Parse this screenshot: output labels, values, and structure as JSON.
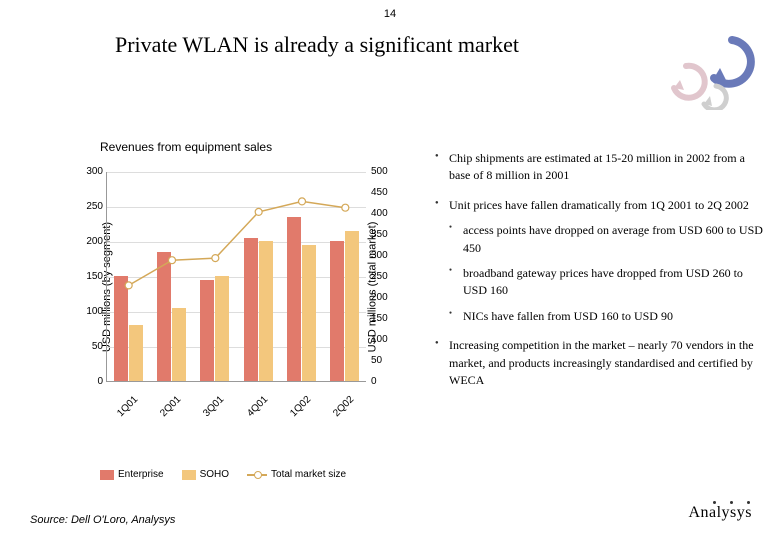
{
  "page_number": "14",
  "title": "Private WLAN is already a significant market",
  "source": "Source: Dell O'Loro, Analysys",
  "brand": "Analysys",
  "swirl_colors": {
    "blue": "#6a7ab9",
    "pink": "#e1c6cd",
    "grey": "#cfcfcf"
  },
  "chart": {
    "title": "Revenues from equipment sales",
    "type": "bar_and_line_dual_axis",
    "categories": [
      "1Q01",
      "2Q01",
      "3Q01",
      "4Q01",
      "1Q02",
      "2Q02"
    ],
    "left_axis": {
      "label": "USD millions (by segment)",
      "min": 0,
      "max": 300,
      "step": 50
    },
    "right_axis": {
      "label": "USD millions (total market)",
      "min": 0,
      "max": 500,
      "step": 50
    },
    "series": {
      "enterprise": {
        "label": "Enterprise",
        "color": "#e17a6b",
        "values": [
          150,
          185,
          145,
          205,
          235,
          200
        ]
      },
      "soho": {
        "label": "SOHO",
        "color": "#f3c77d",
        "values": [
          80,
          105,
          150,
          200,
          195,
          215
        ]
      },
      "total": {
        "label": "Total market size",
        "color": "#d4a858",
        "values": [
          230,
          290,
          295,
          405,
          430,
          415
        ]
      }
    },
    "background": "#ffffff",
    "grid_color": "#dddddd",
    "label_fontsize": 11,
    "tick_fontsize": 10
  },
  "bullets": [
    {
      "text": "Chip shipments are estimated at 15-20 million in 2002 from a base of 8 million in 2001"
    },
    {
      "text": "Unit prices have fallen dramatically from 1Q 2001 to 2Q 2002",
      "children": [
        {
          "text": "access points have dropped on average from USD 600 to USD 450"
        },
        {
          "text": "broadband gateway prices have dropped from USD 260 to USD 160"
        },
        {
          "text": "NICs have fallen from USD 160 to USD 90"
        }
      ]
    },
    {
      "text": "Increasing competition in the market – nearly 70 vendors in the market, and products increasingly standardised and certified by WECA"
    }
  ]
}
